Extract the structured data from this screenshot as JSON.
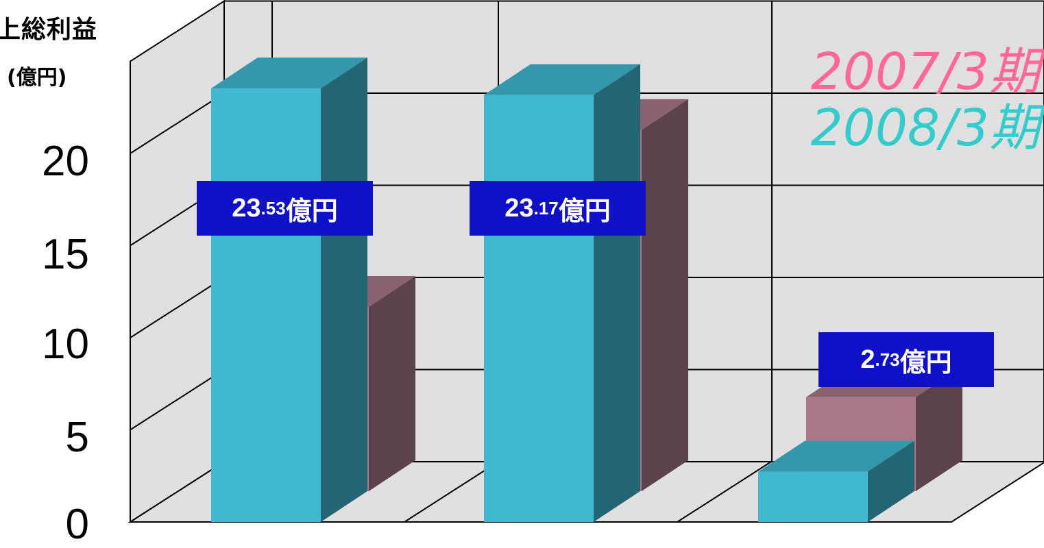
{
  "chart_data": {
    "type": "bar",
    "title": "上総利益",
    "ylabel": "(億円)",
    "ylim": [
      0,
      25
    ],
    "yticks": [
      "0",
      "5",
      "10",
      "15",
      "20"
    ],
    "categories": [
      "",
      "",
      ""
    ],
    "series": [
      {
        "name": "2007/3期",
        "color": "#a87888",
        "values": [
          10.0,
          19.6,
          5.1
        ]
      },
      {
        "name": "2008/3期",
        "color": "#40b8d0",
        "values": [
          23.53,
          23.17,
          2.73
        ]
      }
    ],
    "data_labels": [
      {
        "main": "23",
        "dec": ".53",
        "unit": "億円"
      },
      {
        "main": "23",
        "dec": ".17",
        "unit": "億円"
      },
      {
        "main": "2",
        "dec": ".73",
        "unit": "億円"
      }
    ],
    "legend": {
      "position": "top-right",
      "colors": [
        "#ff6699",
        "#33cccc"
      ]
    },
    "grid": true
  }
}
